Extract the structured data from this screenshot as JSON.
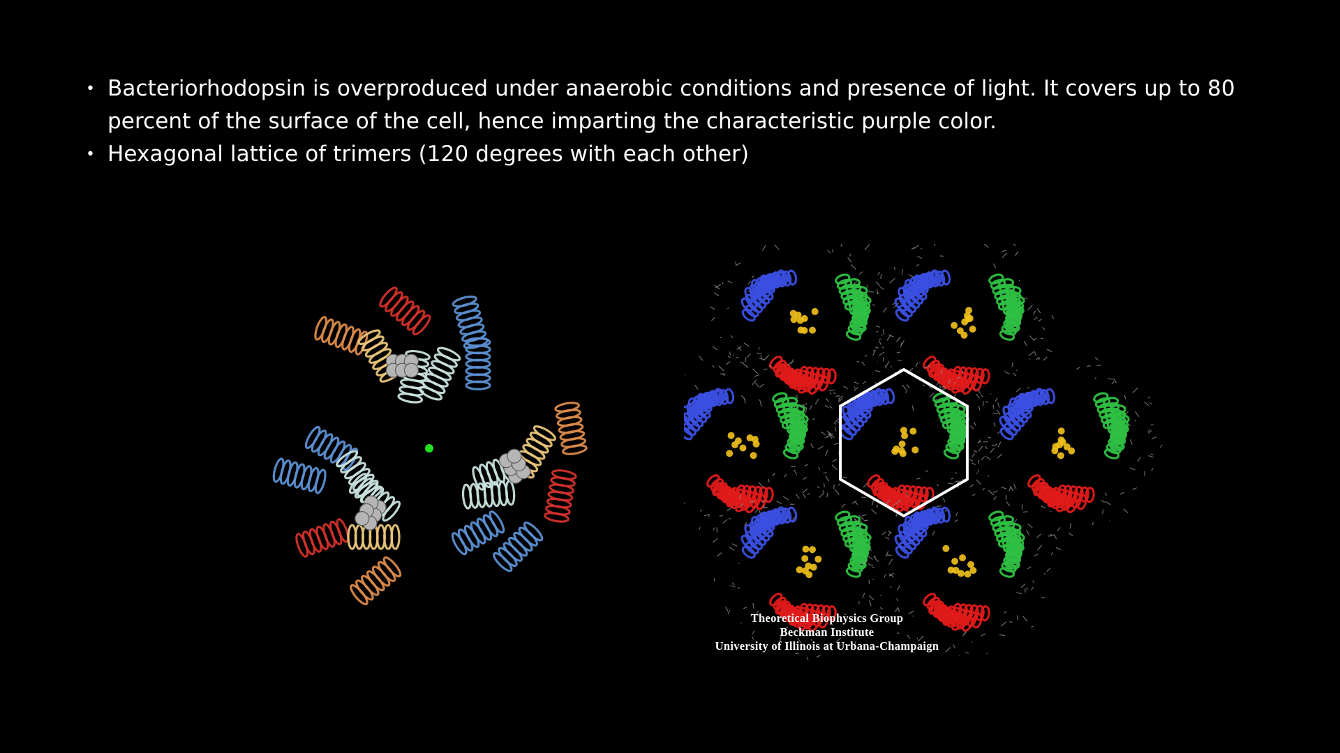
{
  "bullets": [
    "Bacteriorhodopsin is overproduced under anaerobic conditions and presence of light. It covers up to 80 percent of the surface of the cell, hence imparting the characteristic purple color.",
    "Hexagonal lattice of trimers (120 degrees with each other)"
  ],
  "bullet_glyph": "•",
  "figure_right_caption": {
    "line1": "Theoretical Biophysics Group",
    "line2": "Beckman Institute",
    "line3": "University of Illinois at Urbana-Champaign"
  },
  "colors": {
    "background": "#000000",
    "text": "#ffffff",
    "helix_blue": "#5b8fd0",
    "helix_red": "#d0302a",
    "helix_orange": "#d98a4a",
    "helix_tan": "#e8c47a",
    "helix_pale": "#c8e0dc",
    "lattice_blue": "#3a4fe0",
    "lattice_green": "#2ec043",
    "lattice_red": "#e01a1a",
    "lattice_yellow": "#f2c21a",
    "lipid_gray": "#8a8a8a",
    "center_dot": "#22e022"
  },
  "icons": {
    "left_image": "bacteriorhodopsin-trimer-ribbon-image",
    "right_image": "hexagonal-lattice-of-trimers-image"
  }
}
